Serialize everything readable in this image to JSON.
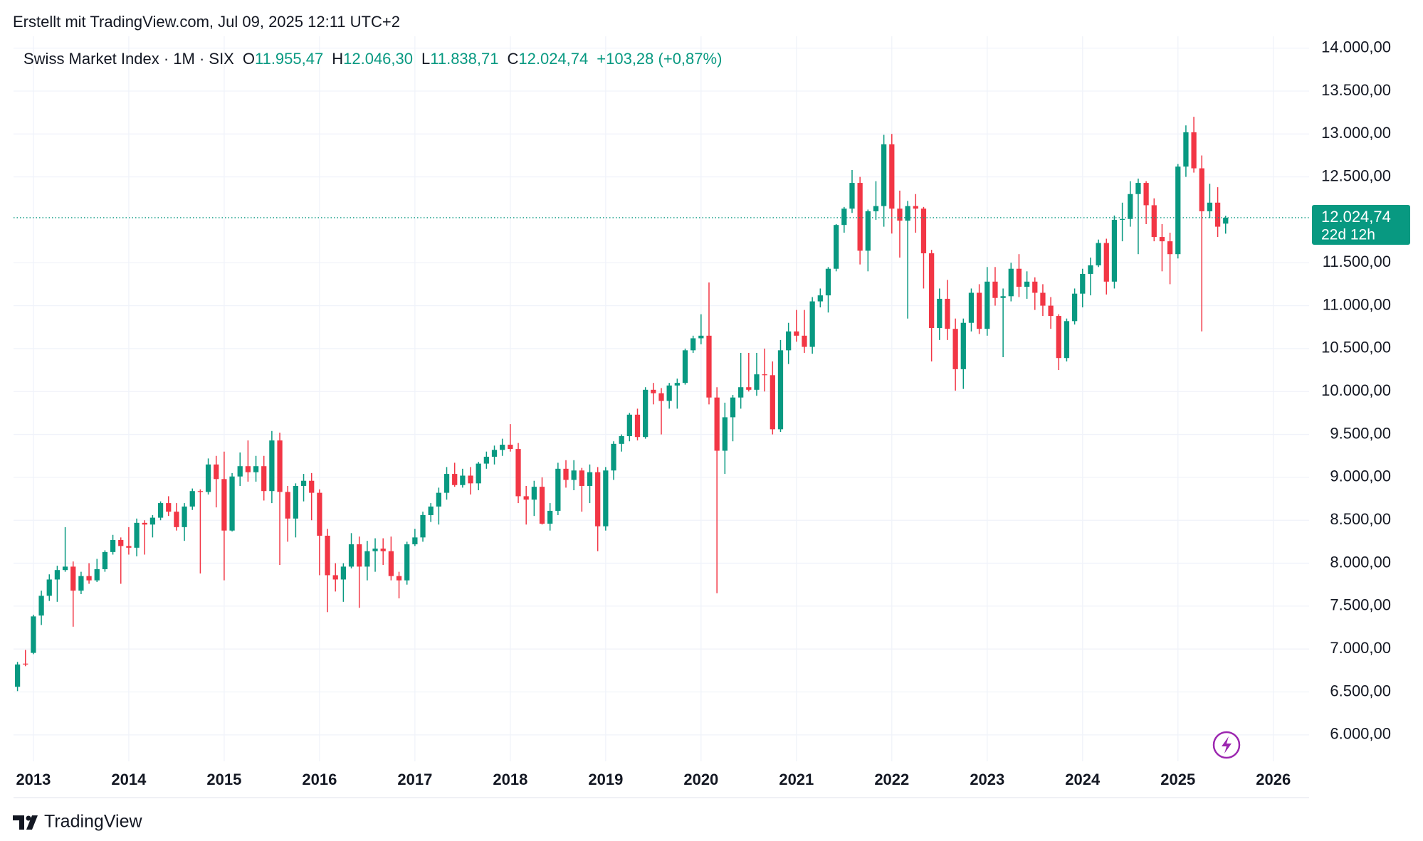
{
  "chart_data": {
    "type": "candlestick",
    "caption": "Erstellt mit TradingView.com, Jul 09, 2025 12:11 UTC+2",
    "header": {
      "symbol": "Swiss Market Index · 1M · SIX",
      "legend": [
        {
          "label": "O",
          "value": "11.955,47"
        },
        {
          "label": "H",
          "value": "12.046,30"
        },
        {
          "label": "L",
          "value": "11.838,71"
        },
        {
          "label": "C",
          "value": "12.024,74"
        }
      ],
      "change": "+103,28 (+0,87%)"
    },
    "brand": "TradingView",
    "last_price": {
      "value": 12024.74,
      "label": "12.024,74"
    },
    "countdown": "22d 12h",
    "up_color": "#089981",
    "down_color": "#f23645",
    "grid": true,
    "grid_color": "#f0f3fa",
    "x": [
      "2012-11",
      "2012-12",
      "2013-01",
      "2013-02",
      "2013-03",
      "2013-04",
      "2013-05",
      "2013-06",
      "2013-07",
      "2013-08",
      "2013-09",
      "2013-10",
      "2013-11",
      "2013-12",
      "2014-01",
      "2014-02",
      "2014-03",
      "2014-04",
      "2014-05",
      "2014-06",
      "2014-07",
      "2014-08",
      "2014-09",
      "2014-10",
      "2014-11",
      "2014-12",
      "2015-01",
      "2015-02",
      "2015-03",
      "2015-04",
      "2015-05",
      "2015-06",
      "2015-07",
      "2015-08",
      "2015-09",
      "2015-10",
      "2015-11",
      "2015-12",
      "2016-01",
      "2016-02",
      "2016-03",
      "2016-04",
      "2016-05",
      "2016-06",
      "2016-07",
      "2016-08",
      "2016-09",
      "2016-10",
      "2016-11",
      "2016-12",
      "2017-01",
      "2017-02",
      "2017-03",
      "2017-04",
      "2017-05",
      "2017-06",
      "2017-07",
      "2017-08",
      "2017-09",
      "2017-10",
      "2017-11",
      "2017-12",
      "2018-01",
      "2018-02",
      "2018-03",
      "2018-04",
      "2018-05",
      "2018-06",
      "2018-07",
      "2018-08",
      "2018-09",
      "2018-10",
      "2018-11",
      "2018-12",
      "2019-01",
      "2019-02",
      "2019-03",
      "2019-04",
      "2019-05",
      "2019-06",
      "2019-07",
      "2019-08",
      "2019-09",
      "2019-10",
      "2019-11",
      "2019-12",
      "2020-01",
      "2020-02",
      "2020-03",
      "2020-04",
      "2020-05",
      "2020-06",
      "2020-07",
      "2020-08",
      "2020-09",
      "2020-10",
      "2020-11",
      "2020-12",
      "2021-01",
      "2021-02",
      "2021-03",
      "2021-04",
      "2021-05",
      "2021-06",
      "2021-07",
      "2021-08",
      "2021-09",
      "2021-10",
      "2021-11",
      "2021-12",
      "2022-01",
      "2022-02",
      "2022-03",
      "2022-04",
      "2022-05",
      "2022-06",
      "2022-07",
      "2022-08",
      "2022-09",
      "2022-10",
      "2022-11",
      "2022-12",
      "2023-01",
      "2023-02",
      "2023-03",
      "2023-04",
      "2023-05",
      "2023-06",
      "2023-07",
      "2023-08",
      "2023-09",
      "2023-10",
      "2023-11",
      "2023-12",
      "2024-01",
      "2024-02",
      "2024-03",
      "2024-04",
      "2024-05",
      "2024-06",
      "2024-07",
      "2024-08",
      "2024-09",
      "2024-10",
      "2024-11",
      "2024-12",
      "2025-01",
      "2025-02",
      "2025-03",
      "2025-04",
      "2025-05",
      "2025-06",
      "2025-07"
    ],
    "open": [
      6560,
      6830,
      6955,
      7390,
      7620,
      7810,
      7920,
      7960,
      7680,
      7850,
      7800,
      7930,
      8130,
      8270,
      8200,
      8180,
      8470,
      8450,
      8530,
      8700,
      8600,
      8420,
      8660,
      8840,
      8830,
      9150,
      8980,
      8380,
      9010,
      9130,
      9060,
      9130,
      8840,
      9430,
      8830,
      8520,
      8900,
      8960,
      8820,
      8320,
      7860,
      7810,
      7960,
      8220,
      7960,
      8140,
      8170,
      8140,
      7850,
      7800,
      8220,
      8300,
      8560,
      8660,
      8820,
      9040,
      8910,
      9020,
      8930,
      9160,
      9240,
      9320,
      9380,
      9330,
      8780,
      8740,
      8890,
      8460,
      8610,
      9100,
      8970,
      9080,
      8900,
      9060,
      8430,
      9080,
      9390,
      9480,
      9730,
      9470,
      10020,
      9980,
      9890,
      10070,
      10100,
      10480,
      10620,
      10650,
      9930,
      9310,
      9700,
      9930,
      10050,
      10020,
      10200,
      10190,
      9560,
      10480,
      10700,
      10650,
      10520,
      11050,
      11120,
      11430,
      11940,
      12130,
      12430,
      11640,
      12100,
      12160,
      12880,
      12130,
      11990,
      12160,
      12130,
      11610,
      10740,
      11080,
      10730,
      10260,
      10800,
      11150,
      10730,
      11280,
      11090,
      11110,
      11430,
      11220,
      11280,
      11150,
      11000,
      10880,
      10390,
      10820,
      11140,
      11370,
      11470,
      11730,
      11280,
      12000,
      12010,
      12300,
      12430,
      12170,
      11800,
      11750,
      11600,
      12620,
      13020,
      12600,
      12100,
      12200,
      11955.47
    ],
    "high": [
      6850,
      6990,
      7400,
      7680,
      7870,
      7970,
      8420,
      8020,
      7900,
      8000,
      8050,
      8150,
      8330,
      8300,
      8420,
      8520,
      8500,
      8560,
      8720,
      8780,
      8700,
      8700,
      8870,
      8860,
      9220,
      9250,
      9300,
      9050,
      9290,
      9430,
      9250,
      9250,
      9540,
      9520,
      8900,
      8930,
      9040,
      9050,
      8860,
      8400,
      8000,
      8000,
      8350,
      8310,
      8260,
      8290,
      8290,
      8310,
      7900,
      8250,
      8400,
      8600,
      8700,
      8880,
      9120,
      9170,
      9100,
      9120,
      9180,
      9300,
      9370,
      9450,
      9620,
      9400,
      8900,
      8960,
      9000,
      8700,
      9170,
      9200,
      9200,
      9110,
      9150,
      9120,
      9120,
      9420,
      9500,
      9750,
      9800,
      10050,
      10100,
      10040,
      10100,
      10150,
      10500,
      10650,
      10900,
      11270,
      10050,
      9870,
      9960,
      10450,
      10450,
      10450,
      10500,
      10350,
      10600,
      10800,
      10950,
      10950,
      11100,
      11200,
      11450,
      11950,
      12150,
      12580,
      12500,
      12120,
      12450,
      12990,
      13000,
      12340,
      12220,
      12300,
      12150,
      11650,
      11200,
      11300,
      10850,
      10850,
      11200,
      11250,
      11450,
      11450,
      11200,
      11500,
      11600,
      11400,
      11330,
      11250,
      11100,
      10900,
      10850,
      11200,
      11430,
      11560,
      11770,
      11780,
      12050,
      12200,
      12450,
      12480,
      12450,
      12250,
      11950,
      11850,
      12650,
      13100,
      13200,
      12750,
      12420,
      12380,
      12046.3
    ],
    "low": [
      6510,
      6800,
      6940,
      7280,
      7560,
      7550,
      7900,
      7260,
      7640,
      7760,
      7780,
      7900,
      8100,
      7760,
      8100,
      8080,
      8100,
      8300,
      8500,
      8550,
      8380,
      8260,
      8620,
      7880,
      8800,
      8650,
      7800,
      8370,
      8900,
      8950,
      8950,
      8730,
      8700,
      7980,
      8250,
      8300,
      8720,
      8500,
      7860,
      7430,
      7670,
      7550,
      7940,
      7480,
      7800,
      7900,
      7980,
      7800,
      7590,
      7750,
      8200,
      8250,
      8480,
      8450,
      8740,
      8890,
      8880,
      8800,
      8850,
      9100,
      9150,
      9250,
      9300,
      8700,
      8450,
      8550,
      8450,
      8380,
      8560,
      8880,
      8850,
      8600,
      8700,
      8140,
      8380,
      8970,
      9300,
      9420,
      9430,
      9450,
      9850,
      9500,
      9800,
      9800,
      10080,
      10450,
      10550,
      9850,
      7650,
      9040,
      9420,
      9800,
      10000,
      9950,
      10000,
      9500,
      9530,
      10320,
      10580,
      10450,
      10440,
      10980,
      10920,
      11400,
      11850,
      12080,
      11480,
      11400,
      12000,
      11920,
      11840,
      11560,
      10850,
      11850,
      11200,
      10350,
      10600,
      10600,
      10010,
      10030,
      10700,
      10670,
      10650,
      11000,
      10400,
      11050,
      11100,
      11080,
      10950,
      10880,
      10730,
      10250,
      10350,
      10780,
      10980,
      11120,
      11450,
      11130,
      11200,
      11750,
      11920,
      11600,
      11950,
      11750,
      11400,
      11250,
      11550,
      12500,
      12550,
      10700,
      12020,
      11800,
      11838.71
    ],
    "close": [
      6820,
      6822,
      7380,
      7620,
      7810,
      7920,
      7960,
      7680,
      7850,
      7800,
      7930,
      8130,
      8270,
      8200,
      8180,
      8470,
      8450,
      8530,
      8700,
      8600,
      8420,
      8660,
      8840,
      8830,
      9150,
      8980,
      8380,
      9010,
      9130,
      9060,
      9130,
      8840,
      9430,
      8830,
      8520,
      8900,
      8960,
      8820,
      8320,
      7860,
      7810,
      7960,
      8220,
      7960,
      8140,
      8170,
      8140,
      7850,
      7800,
      8220,
      8300,
      8560,
      8660,
      8820,
      9040,
      8910,
      9020,
      8930,
      9160,
      9240,
      9320,
      9380,
      9330,
      8780,
      8740,
      8890,
      8460,
      8610,
      9100,
      8970,
      9080,
      8900,
      9060,
      8430,
      9080,
      9390,
      9480,
      9730,
      9470,
      10020,
      9980,
      9890,
      10070,
      10100,
      10480,
      10620,
      10650,
      9930,
      9310,
      9700,
      9930,
      10050,
      10020,
      10200,
      10190,
      9560,
      10480,
      10700,
      10650,
      10520,
      11050,
      11120,
      11430,
      11940,
      12130,
      12430,
      11640,
      12100,
      12160,
      12880,
      12130,
      11990,
      12160,
      12130,
      11610,
      10740,
      11080,
      10730,
      10260,
      10800,
      11150,
      10730,
      11280,
      11090,
      11110,
      11430,
      11220,
      11280,
      11150,
      11000,
      10880,
      10390,
      10820,
      11140,
      11370,
      11470,
      11730,
      11280,
      12000,
      12010,
      12300,
      12430,
      12170,
      11800,
      11750,
      11600,
      12620,
      13020,
      12600,
      12100,
      12200,
      11920,
      12024.74
    ],
    "xlim": [
      "2012-11",
      "2026-05"
    ],
    "xticks": [
      2013,
      2014,
      2015,
      2016,
      2017,
      2018,
      2019,
      2020,
      2021,
      2022,
      2023,
      2024,
      2025,
      2026
    ],
    "ylim": [
      5692,
      14138
    ],
    "yticks": [
      {
        "value": 14000,
        "label": "14.000,00"
      },
      {
        "value": 13500,
        "label": "13.500,00"
      },
      {
        "value": 13000,
        "label": "13.000,00"
      },
      {
        "value": 12500,
        "label": "12.500,00"
      },
      {
        "value": 11500,
        "label": "11.500,00"
      },
      {
        "value": 11000,
        "label": "11.000,00"
      },
      {
        "value": 10500,
        "label": "10.500,00"
      },
      {
        "value": 10000,
        "label": "10.000,00"
      },
      {
        "value": 9500,
        "label": "9.500,00"
      },
      {
        "value": 9000,
        "label": "9.000,00"
      },
      {
        "value": 8500,
        "label": "8.500,00"
      },
      {
        "value": 8000,
        "label": "8.000,00"
      },
      {
        "value": 7500,
        "label": "7.500,00"
      },
      {
        "value": 7000,
        "label": "7.000,00"
      },
      {
        "value": 6500,
        "label": "6.500,00"
      },
      {
        "value": 6000,
        "label": "6.000,00"
      }
    ]
  }
}
